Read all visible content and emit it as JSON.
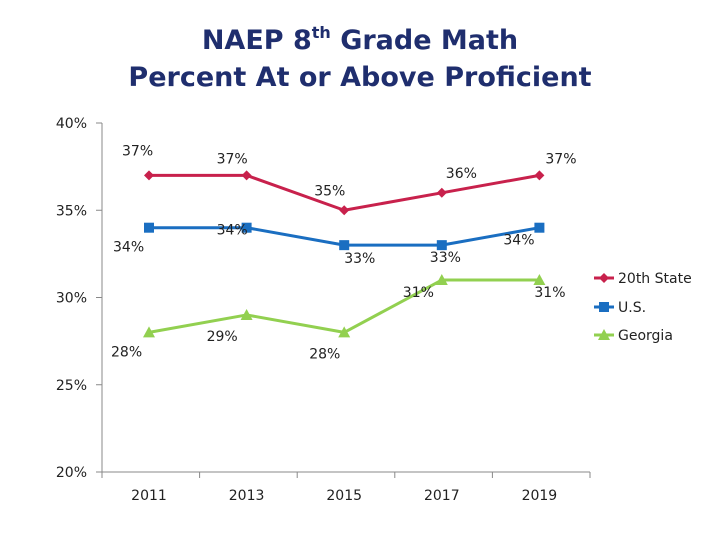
{
  "title": {
    "pre": "NAEP 8",
    "sup": "th",
    "post": " Grade Math",
    "line2": "Percent At or Above Proficient"
  },
  "chart_data": {
    "type": "line",
    "title": "NAEP 8th Grade Math Percent At or Above Proficient",
    "x": [
      "2011",
      "2013",
      "2015",
      "2017",
      "2019"
    ],
    "y_ticks": [
      "20%",
      "25%",
      "30%",
      "35%",
      "40%"
    ],
    "ylim": [
      20,
      40
    ],
    "grid": false,
    "legend_position": "right",
    "series": [
      {
        "name": "20th State",
        "values": [
          37,
          37,
          35,
          36,
          37
        ],
        "labels": [
          "37%",
          "37%",
          "35%",
          "36%",
          "37%"
        ],
        "color": "#c8214c",
        "marker": "diamond"
      },
      {
        "name": "U.S.",
        "values": [
          34,
          34,
          33,
          33,
          34
        ],
        "labels": [
          "34%",
          "34%",
          "33%",
          "33%",
          "34%"
        ],
        "color": "#1a6ec1",
        "marker": "square"
      },
      {
        "name": "Georgia",
        "values": [
          28,
          29,
          28,
          31,
          31
        ],
        "labels": [
          "28%",
          "29%",
          "28%",
          "31%",
          "31%"
        ],
        "color": "#92d050",
        "marker": "triangle"
      }
    ]
  }
}
